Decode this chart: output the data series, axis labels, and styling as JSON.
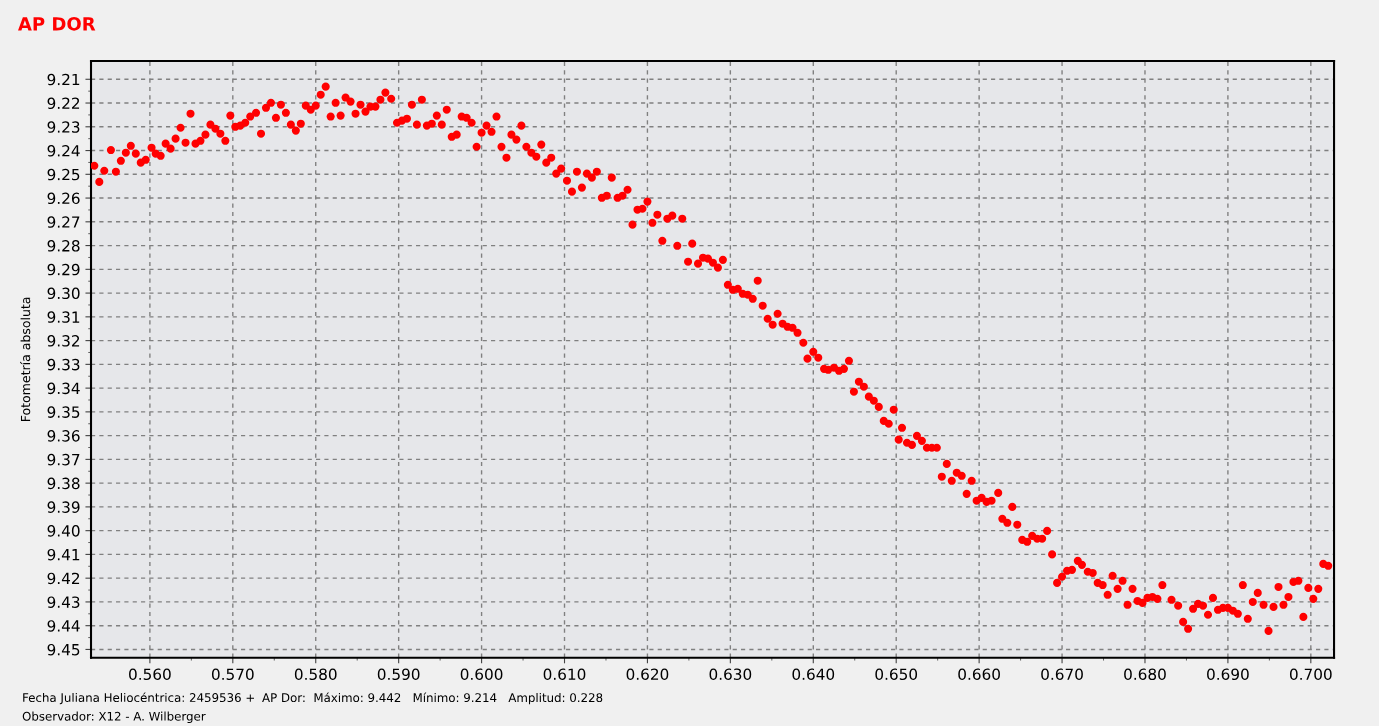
{
  "chart_data": {
    "type": "scatter",
    "title": "AP DOR",
    "ylabel": "Fotometría absoluta",
    "annotations": [
      "Fecha Juliana Heliocéntrica: 2459536 +",
      "AP Dor:  Máximo: 9.442   Mínimo: 9.214   Amplitud: 0.228",
      "Observador: X12 - A. Wilberger"
    ],
    "xlim": [
      0.5529,
      0.7028
    ],
    "ylim": [
      9.4535,
      9.2023
    ],
    "xticks": [
      {
        "value": 0.56,
        "label": "0.560"
      },
      {
        "value": 0.57,
        "label": "0.570"
      },
      {
        "value": 0.58,
        "label": "0.580"
      },
      {
        "value": 0.59,
        "label": "0.590"
      },
      {
        "value": 0.6,
        "label": "0.600"
      },
      {
        "value": 0.61,
        "label": "0.610"
      },
      {
        "value": 0.62,
        "label": "0.620"
      },
      {
        "value": 0.63,
        "label": "0.630"
      },
      {
        "value": 0.64,
        "label": "0.640"
      },
      {
        "value": 0.65,
        "label": "0.650"
      },
      {
        "value": 0.66,
        "label": "0.660"
      },
      {
        "value": 0.67,
        "label": "0.670"
      },
      {
        "value": 0.68,
        "label": "0.680"
      },
      {
        "value": 0.69,
        "label": "0.690"
      },
      {
        "value": 0.7,
        "label": "0.700"
      }
    ],
    "yticks": [
      9.21,
      9.22,
      9.23,
      9.24,
      9.25,
      9.26,
      9.27,
      9.28,
      9.29,
      {
        "value": 9.3,
        "label": "9.30"
      },
      9.31,
      9.32,
      9.33,
      9.34,
      9.35,
      9.36,
      9.37,
      9.38,
      9.39,
      {
        "value": 9.4,
        "label": "9.40"
      },
      9.41,
      9.42,
      9.43,
      9.44,
      9.45
    ],
    "grid": true,
    "marker": "circle",
    "series": [
      {
        "color": "#ff0000",
        "x": [
          0.5533,
          0.5539,
          0.5545,
          0.5553,
          0.5559,
          0.5565,
          0.5571,
          0.5577,
          0.5583,
          0.5589,
          0.5595,
          0.5602,
          0.5607,
          0.5613,
          0.5619,
          0.5625,
          0.5631,
          0.5637,
          0.5643,
          0.5649,
          0.5655,
          0.5661,
          0.5667,
          0.5673,
          0.5679,
          0.5685,
          0.5691,
          0.5697,
          0.5703,
          0.5709,
          0.5715,
          0.5721,
          0.5728,
          0.5734,
          0.574,
          0.5746,
          0.5752,
          0.5758,
          0.5764,
          0.577,
          0.5776,
          0.5782,
          0.5788,
          0.5794,
          0.58,
          0.5806,
          0.5812,
          0.5818,
          0.5824,
          0.583,
          0.5836,
          0.5842,
          0.5848,
          0.5854,
          0.586,
          0.5866,
          0.5872,
          0.5878,
          0.5884,
          0.5891,
          0.5898,
          0.5904,
          0.591,
          0.5916,
          0.5922,
          0.5928,
          0.5934,
          0.594,
          0.5946,
          0.5952,
          0.5958,
          0.5964,
          0.597,
          0.5976,
          0.5982,
          0.5988,
          0.5994,
          0.6,
          0.6006,
          0.6012,
          0.6018,
          0.6024,
          0.603,
          0.6036,
          0.6042,
          0.6048,
          0.6054,
          0.606,
          0.6066,
          0.6072,
          0.6078,
          0.6084,
          0.609,
          0.6096,
          0.6103,
          0.6109,
          0.6115,
          0.6121,
          0.6127,
          0.6133,
          0.6139,
          0.6145,
          0.6151,
          0.6157,
          0.6164,
          0.617,
          0.6176,
          0.6182,
          0.6188,
          0.6194,
          0.62,
          0.6206,
          0.6212,
          0.6218,
          0.6224,
          0.623,
          0.6236,
          0.6242,
          0.6249,
          0.6254,
          0.6261,
          0.6267,
          0.6273,
          0.6279,
          0.6285,
          0.6291,
          0.6297,
          0.6303,
          0.6309,
          0.6315,
          0.6321,
          0.6327,
          0.6333,
          0.6339,
          0.6345,
          0.6351,
          0.6357,
          0.6363,
          0.6369,
          0.6375,
          0.6381,
          0.6388,
          0.6393,
          0.64,
          0.6406,
          0.6413,
          0.6418,
          0.6425,
          0.6431,
          0.6437,
          0.6443,
          0.6449,
          0.6455,
          0.6461,
          0.6467,
          0.6473,
          0.6479,
          0.6485,
          0.6491,
          0.6497,
          0.6503,
          0.6507,
          0.6513,
          0.6519,
          0.6525,
          0.6531,
          0.6537,
          0.6543,
          0.6549,
          0.6555,
          0.6561,
          0.6567,
          0.6573,
          0.6579,
          0.6585,
          0.6591,
          0.6597,
          0.6603,
          0.6609,
          0.6615,
          0.6623,
          0.6628,
          0.6634,
          0.664,
          0.6646,
          0.6652,
          0.6658,
          0.6664,
          0.667,
          0.6676,
          0.6682,
          0.6688,
          0.6694,
          0.67,
          0.6706,
          0.6712,
          0.6719,
          0.6724,
          0.6731,
          0.6737,
          0.6743,
          0.6749,
          0.6755,
          0.6761,
          0.6767,
          0.6773,
          0.6779,
          0.6785,
          0.6791,
          0.6797,
          0.6803,
          0.6809,
          0.6815,
          0.6821,
          0.6832,
          0.684,
          0.6846,
          0.6852,
          0.6858,
          0.6864,
          0.687,
          0.6876,
          0.6882,
          0.6888,
          0.6894,
          0.69,
          0.6906,
          0.6912,
          0.6918,
          0.6924,
          0.693,
          0.6936,
          0.6943,
          0.6949,
          0.6955,
          0.6961,
          0.6967,
          0.6973,
          0.6979,
          0.6985,
          0.6991,
          0.6997,
          0.7003,
          0.7009,
          0.7015,
          0.7021
        ],
        "values": [
          9.2464,
          9.2532,
          9.2485,
          9.2398,
          9.2489,
          9.2443,
          9.2409,
          9.238,
          9.2413,
          9.2451,
          9.2439,
          9.2388,
          9.2413,
          9.2422,
          9.2371,
          9.2392,
          9.235,
          9.2304,
          9.2367,
          9.2245,
          9.2371,
          9.2359,
          9.2333,
          9.2291,
          9.2308,
          9.2329,
          9.2359,
          9.2253,
          9.23,
          9.2295,
          9.2283,
          9.2257,
          9.2241,
          9.2329,
          9.222,
          9.2199,
          9.2262,
          9.2207,
          9.2241,
          9.2291,
          9.2316,
          9.2287,
          9.2211,
          9.2228,
          9.2211,
          9.2165,
          9.2131,
          9.2257,
          9.2199,
          9.2253,
          9.2177,
          9.2194,
          9.2245,
          9.2207,
          9.2236,
          9.2215,
          9.2215,
          9.2186,
          9.2156,
          9.2182,
          9.2283,
          9.2274,
          9.2266,
          9.2207,
          9.2291,
          9.2186,
          9.2295,
          9.2287,
          9.2253,
          9.2291,
          9.2228,
          9.2342,
          9.2333,
          9.2257,
          9.2262,
          9.2283,
          9.2384,
          9.2325,
          9.2295,
          9.2321,
          9.2257,
          9.2384,
          9.243,
          9.2333,
          9.2354,
          9.2295,
          9.2384,
          9.2409,
          9.2426,
          9.2375,
          9.2451,
          9.243,
          9.2497,
          9.2476,
          9.2527,
          9.2573,
          9.2489,
          9.2556,
          9.2497,
          9.2514,
          9.2489,
          9.2599,
          9.259,
          9.2514,
          9.2599,
          9.259,
          9.2565,
          9.2712,
          9.2649,
          9.2645,
          9.2615,
          9.2704,
          9.267,
          9.278,
          9.2687,
          9.2674,
          9.2801,
          9.2687,
          9.2868,
          9.2792,
          9.2876,
          9.2851,
          9.2855,
          9.2872,
          9.2893,
          9.286,
          9.2965,
          9.2986,
          9.2982,
          9.3003,
          9.3007,
          9.3024,
          9.2948,
          9.3053,
          9.3108,
          9.3133,
          9.3087,
          9.3129,
          9.3142,
          9.3146,
          9.3167,
          9.3209,
          9.3276,
          9.3247,
          9.3272,
          9.3319,
          9.3323,
          9.3314,
          9.3327,
          9.3319,
          9.3285,
          9.3415,
          9.3373,
          9.3394,
          9.3436,
          9.3453,
          9.3479,
          9.3538,
          9.355,
          9.3491,
          9.3617,
          9.3567,
          9.363,
          9.3639,
          9.3601,
          9.3622,
          9.3651,
          9.3651,
          9.3651,
          9.3773,
          9.3719,
          9.379,
          9.3756,
          9.3769,
          9.3845,
          9.379,
          9.3874,
          9.3862,
          9.3879,
          9.3874,
          9.3841,
          9.395,
          9.3967,
          9.39,
          9.3975,
          9.4039,
          9.4047,
          9.4022,
          9.4034,
          9.4034,
          9.4001,
          9.41,
          9.422,
          9.4194,
          9.4169,
          9.4165,
          9.4127,
          9.4144,
          9.4173,
          9.4178,
          9.422,
          9.4229,
          9.427,
          9.419,
          9.4245,
          9.4211,
          9.4312,
          9.4245,
          9.4296,
          9.4304,
          9.4283,
          9.4279,
          9.4287,
          9.4229,
          9.4291,
          9.4316,
          9.4384,
          9.4413,
          9.4329,
          9.4308,
          9.4316,
          9.4354,
          9.4283,
          9.4333,
          9.4325,
          9.4325,
          9.4337,
          9.435,
          9.4229,
          9.4371,
          9.43,
          9.4262,
          9.4312,
          9.4422,
          9.4321,
          9.4237,
          9.4312,
          9.4279,
          9.4216,
          9.4211,
          9.4363,
          9.4241,
          9.4287,
          9.4245,
          9.414,
          9.4148
        ]
      }
    ]
  }
}
